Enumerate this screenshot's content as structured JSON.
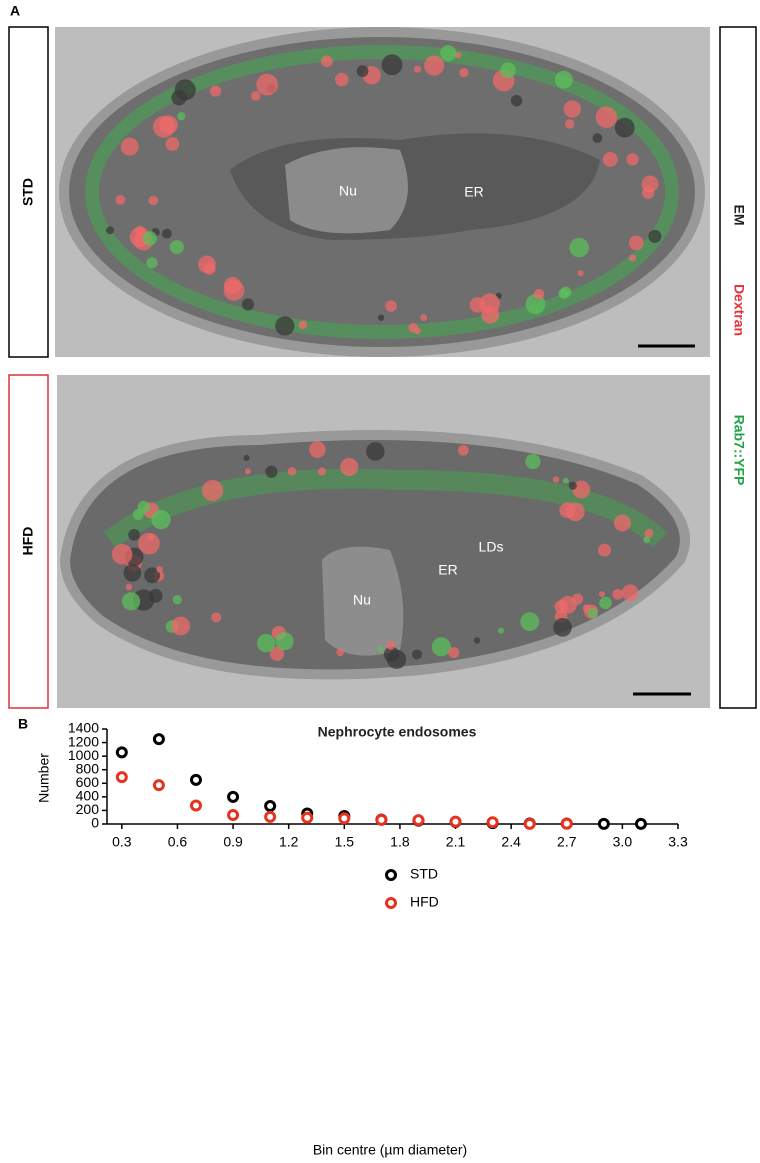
{
  "panel_a": {
    "label": "A",
    "rows": [
      "STD",
      "HFD"
    ],
    "channels": [
      "EM",
      "Dextran",
      "Rab7::YFP"
    ],
    "std_labels": [
      "Nu",
      "ER"
    ],
    "hfd_labels": [
      "Nu",
      "ER",
      "LDs"
    ]
  },
  "panel_b_label": "B",
  "chart_data": {
    "type": "scatter",
    "title": "Nephrocyte endosomes",
    "x_label": "Bin centre (µm diameter)",
    "y_label": "Number",
    "x": [
      0.3,
      0.5,
      0.7,
      0.9,
      1.1,
      1.3,
      1.5,
      1.7,
      1.9,
      2.1,
      2.3,
      2.5,
      2.7,
      2.9,
      3.1
    ],
    "series": [
      {
        "name": "STD",
        "color": "#000000",
        "values": [
          1055,
          1250,
          650,
          400,
          265,
          155,
          118,
          65,
          50,
          30,
          12,
          8,
          5,
          2,
          2
        ]
      },
      {
        "name": "HFD",
        "color": "#e8321e",
        "values": [
          690,
          572,
          272,
          132,
          105,
          92,
          83,
          60,
          57,
          35,
          25,
          2,
          5,
          null,
          null
        ]
      }
    ],
    "xlim": [
      0.22,
      3.3
    ],
    "xticks": [
      0.3,
      0.6,
      0.9,
      1.2,
      1.5,
      1.8,
      2.1,
      2.4,
      2.7,
      {
        "value": 3,
        "label": "3.0"
      },
      3.3
    ],
    "ylim": [
      0,
      1400
    ],
    "yticks": [
      0,
      200,
      400,
      600,
      800,
      1000,
      1200,
      1400
    ],
    "grid": false,
    "legend": "center"
  }
}
